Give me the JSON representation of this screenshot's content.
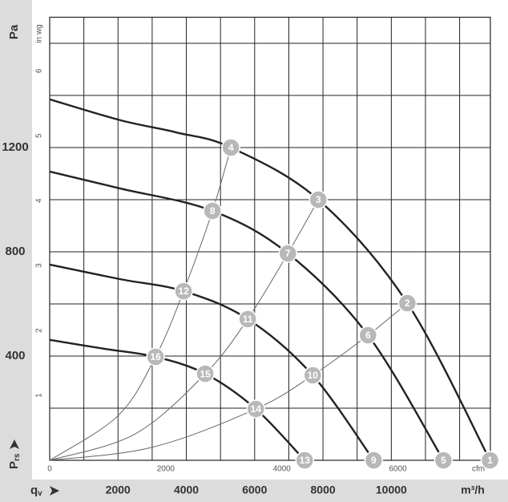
{
  "chart_data": {
    "type": "line",
    "y_label": "Pa",
    "pressure_symbol": "P",
    "pressure_subscript": "rs",
    "flow_symbol": "q",
    "flow_subscript": "v",
    "x_label": "m³/h",
    "y2_label": "in wg",
    "x2_label": "cfm",
    "xlim": [
      0,
      12900
    ],
    "xticks": [
      2000,
      4000,
      6000,
      8000,
      10000
    ],
    "xgrid": [
      1000,
      2000,
      3000,
      4000,
      5000,
      6000,
      7000,
      8000,
      9000,
      10000,
      11000,
      12000
    ],
    "ylim": [
      0,
      1700
    ],
    "yticks": [
      400,
      800,
      1200
    ],
    "ygrid": [
      200,
      400,
      600,
      800,
      1000,
      1200,
      1400,
      1600
    ],
    "y2lim": [
      0,
      6.825
    ],
    "y2ticks": [
      1,
      2,
      3,
      4,
      5,
      6
    ],
    "x2lim": [
      0,
      7593
    ],
    "x2ticks": [
      0,
      2000,
      4000,
      6000
    ],
    "grid": true,
    "series": [
      {
        "color": "#222222",
        "x": [
          0,
          2066,
          3709,
          5305,
          7864,
          10470,
          12890
        ],
        "values": [
          1385,
          1305,
          1258,
          1200,
          1000,
          603,
          0
        ]
      },
      {
        "color": "#222222",
        "x": [
          0,
          2066,
          4765,
          6972,
          9319,
          11526
        ],
        "values": [
          1108,
          1043,
          957,
          794,
          480,
          0
        ]
      },
      {
        "color": "#222222",
        "x": [
          0,
          2066,
          3920,
          5798,
          7700,
          9484
        ],
        "values": [
          751,
          695,
          649,
          542,
          326,
          0
        ]
      },
      {
        "color": "#222222",
        "x": [
          0,
          1596,
          3099,
          4554,
          6033,
          7465
        ],
        "values": [
          462,
          428,
          397,
          332,
          197,
          0
        ]
      },
      {
        "color": "#666666",
        "thin": true,
        "x": [
          0,
          2000,
          3099,
          3920,
          4765,
          5305
        ],
        "values": [
          0,
          171,
          397,
          649,
          957,
          1200
        ]
      },
      {
        "color": "#666666",
        "thin": true,
        "x": [
          0,
          2500,
          4554,
          5798,
          6972,
          7864
        ],
        "values": [
          0,
          101,
          332,
          542,
          794,
          1000
        ]
      },
      {
        "color": "#666666",
        "thin": true,
        "x": [
          0,
          3000,
          6033,
          7700,
          9319,
          10470
        ],
        "values": [
          0,
          50,
          197,
          326,
          480,
          603
        ]
      }
    ],
    "point_color": "#b8b8b8",
    "points": [
      {
        "label": "1",
        "x": 12890,
        "y": 0
      },
      {
        "label": "2",
        "x": 10470,
        "y": 603
      },
      {
        "label": "3",
        "x": 7864,
        "y": 1000
      },
      {
        "label": "4",
        "x": 5305,
        "y": 1200
      },
      {
        "label": "5",
        "x": 11526,
        "y": 0
      },
      {
        "label": "6",
        "x": 9319,
        "y": 480
      },
      {
        "label": "7",
        "x": 6972,
        "y": 794
      },
      {
        "label": "8",
        "x": 4765,
        "y": 957
      },
      {
        "label": "9",
        "x": 9484,
        "y": 0
      },
      {
        "label": "10",
        "x": 7700,
        "y": 326
      },
      {
        "label": "11",
        "x": 5798,
        "y": 542
      },
      {
        "label": "12",
        "x": 3920,
        "y": 649
      },
      {
        "label": "13",
        "x": 7465,
        "y": 0
      },
      {
        "label": "14",
        "x": 6033,
        "y": 197
      },
      {
        "label": "15",
        "x": 4554,
        "y": 332
      },
      {
        "label": "16",
        "x": 3099,
        "y": 397
      }
    ]
  }
}
